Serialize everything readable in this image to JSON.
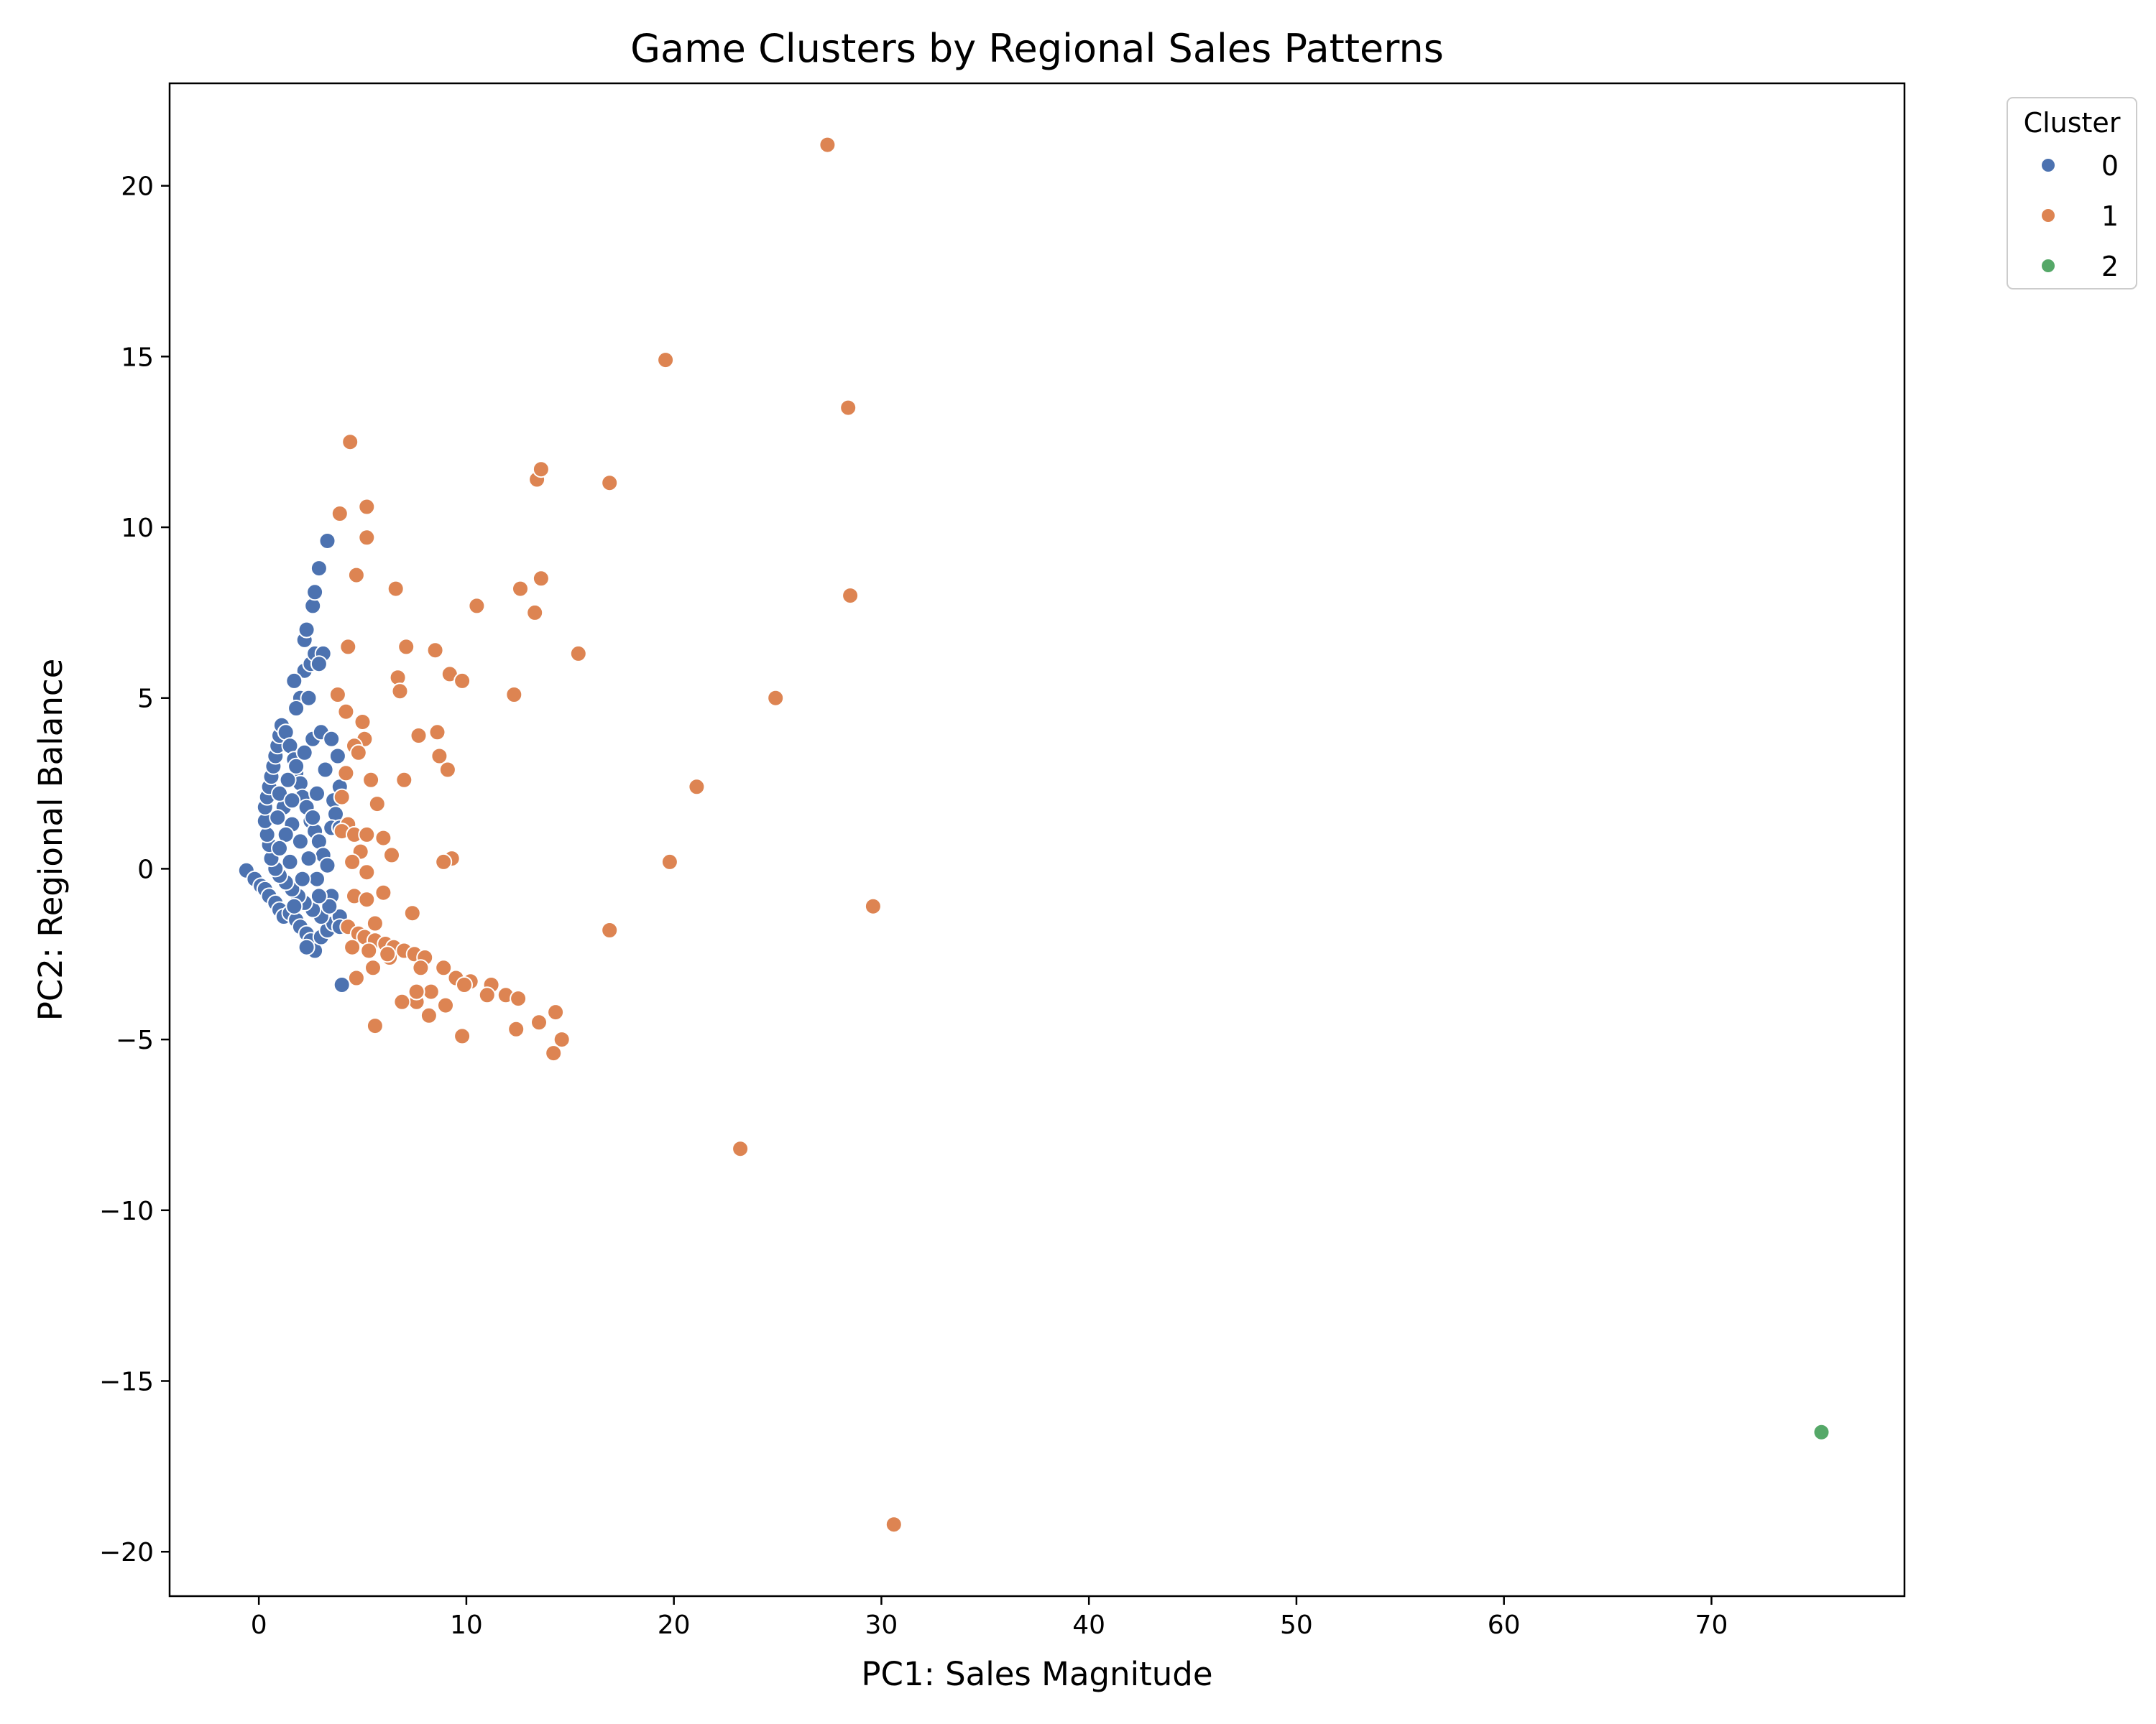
{
  "chart_data": {
    "type": "scatter",
    "title": "Game Clusters by Regional Sales Patterns",
    "xlabel": "PC1: Sales Magnitude",
    "ylabel": "PC2: Regional Balance",
    "xlim": [
      -4.3,
      79.3
    ],
    "ylim": [
      -21.3,
      23.0
    ],
    "xticks": [
      0,
      10,
      20,
      30,
      40,
      50,
      60,
      70
    ],
    "xtick_labels": [
      "0",
      "10",
      "20",
      "30",
      "40",
      "50",
      "60",
      "70"
    ],
    "yticks": [
      -20,
      -15,
      -10,
      -5,
      0,
      5,
      10,
      15,
      20
    ],
    "ytick_labels": [
      "−20",
      "−15",
      "−10",
      "−5",
      "0",
      "5",
      "10",
      "15",
      "20"
    ],
    "grid": false,
    "legend": {
      "title": "Cluster",
      "placement": "upper-right-outside"
    },
    "series": [
      {
        "name": "0",
        "color": "#4c72b0",
        "points": [
          [
            -0.6,
            -0.05
          ],
          [
            -0.2,
            -0.3
          ],
          [
            0.1,
            -0.5
          ],
          [
            0.3,
            -0.6
          ],
          [
            0.5,
            -0.8
          ],
          [
            0.8,
            -1.0
          ],
          [
            1.0,
            -1.2
          ],
          [
            1.2,
            -1.4
          ],
          [
            1.5,
            -1.3
          ],
          [
            1.8,
            -1.5
          ],
          [
            2.0,
            -1.7
          ],
          [
            2.3,
            -1.9
          ],
          [
            2.5,
            -2.1
          ],
          [
            2.7,
            -2.4
          ],
          [
            2.3,
            -2.3
          ],
          [
            3.0,
            -2.0
          ],
          [
            3.3,
            -1.8
          ],
          [
            3.6,
            -1.6
          ],
          [
            3.9,
            -1.4
          ],
          [
            3.0,
            -1.4
          ],
          [
            2.6,
            -1.2
          ],
          [
            2.2,
            -1.0
          ],
          [
            1.9,
            -0.8
          ],
          [
            1.6,
            -0.6
          ],
          [
            1.3,
            -0.4
          ],
          [
            1.0,
            -0.2
          ],
          [
            0.8,
            0.0
          ],
          [
            0.6,
            0.3
          ],
          [
            0.5,
            0.7
          ],
          [
            0.4,
            1.0
          ],
          [
            0.3,
            1.4
          ],
          [
            0.3,
            1.8
          ],
          [
            0.4,
            2.1
          ],
          [
            0.5,
            2.4
          ],
          [
            0.6,
            2.7
          ],
          [
            0.7,
            3.0
          ],
          [
            0.8,
            3.3
          ],
          [
            0.9,
            3.6
          ],
          [
            1.0,
            3.9
          ],
          [
            1.1,
            4.2
          ],
          [
            1.3,
            4.0
          ],
          [
            1.5,
            3.6
          ],
          [
            1.7,
            3.2
          ],
          [
            1.8,
            2.8
          ],
          [
            2.0,
            2.5
          ],
          [
            2.1,
            2.1
          ],
          [
            2.3,
            1.8
          ],
          [
            2.5,
            1.4
          ],
          [
            2.7,
            1.1
          ],
          [
            2.9,
            0.8
          ],
          [
            3.1,
            0.4
          ],
          [
            3.3,
            0.1
          ],
          [
            2.8,
            -0.3
          ],
          [
            2.4,
            0.3
          ],
          [
            2.0,
            0.8
          ],
          [
            1.6,
            1.3
          ],
          [
            1.2,
            1.8
          ],
          [
            1.0,
            2.2
          ],
          [
            1.4,
            2.6
          ],
          [
            1.8,
            3.0
          ],
          [
            2.2,
            3.4
          ],
          [
            2.6,
            3.8
          ],
          [
            3.0,
            4.0
          ],
          [
            3.5,
            3.8
          ],
          [
            2.0,
            5.0
          ],
          [
            2.2,
            5.8
          ],
          [
            2.5,
            6.0
          ],
          [
            2.7,
            6.3
          ],
          [
            2.2,
            6.7
          ],
          [
            2.3,
            7.0
          ],
          [
            2.6,
            7.7
          ],
          [
            2.7,
            8.1
          ],
          [
            2.9,
            8.8
          ],
          [
            3.3,
            9.6
          ],
          [
            1.7,
            5.5
          ],
          [
            1.8,
            4.7
          ],
          [
            2.4,
            5.0
          ],
          [
            3.1,
            6.3
          ],
          [
            2.9,
            6.0
          ],
          [
            3.8,
            3.3
          ],
          [
            3.6,
            2.0
          ],
          [
            3.9,
            2.4
          ],
          [
            3.7,
            1.6
          ],
          [
            3.5,
            1.2
          ],
          [
            3.9,
            1.2
          ],
          [
            3.2,
            2.9
          ],
          [
            2.8,
            2.2
          ],
          [
            2.6,
            1.5
          ],
          [
            1.6,
            2.0
          ],
          [
            1.3,
            1.0
          ],
          [
            1.0,
            0.6
          ],
          [
            0.9,
            1.5
          ],
          [
            1.5,
            0.2
          ],
          [
            2.1,
            -0.3
          ],
          [
            3.5,
            -0.8
          ],
          [
            3.9,
            -1.7
          ],
          [
            4.0,
            -3.4
          ],
          [
            3.4,
            -1.1
          ],
          [
            2.9,
            -0.8
          ],
          [
            1.7,
            -1.1
          ]
        ]
      },
      {
        "name": "1",
        "color": "#dd8452",
        "points": [
          [
            27.4,
            21.2
          ],
          [
            19.6,
            14.9
          ],
          [
            28.4,
            13.5
          ],
          [
            4.4,
            12.5
          ],
          [
            16.9,
            11.3
          ],
          [
            13.4,
            11.4
          ],
          [
            13.6,
            11.7
          ],
          [
            3.9,
            10.4
          ],
          [
            5.2,
            10.6
          ],
          [
            5.2,
            9.7
          ],
          [
            13.6,
            8.5
          ],
          [
            4.7,
            8.6
          ],
          [
            6.6,
            8.2
          ],
          [
            12.6,
            8.2
          ],
          [
            10.5,
            7.7
          ],
          [
            13.3,
            7.5
          ],
          [
            28.5,
            8.0
          ],
          [
            4.3,
            6.5
          ],
          [
            7.1,
            6.5
          ],
          [
            8.5,
            6.4
          ],
          [
            15.4,
            6.3
          ],
          [
            9.2,
            5.7
          ],
          [
            6.7,
            5.6
          ],
          [
            9.8,
            5.5
          ],
          [
            6.8,
            5.2
          ],
          [
            12.3,
            5.1
          ],
          [
            24.9,
            5.0
          ],
          [
            3.8,
            5.1
          ],
          [
            4.2,
            4.6
          ],
          [
            5.0,
            4.3
          ],
          [
            8.6,
            4.0
          ],
          [
            7.7,
            3.9
          ],
          [
            5.1,
            3.8
          ],
          [
            4.6,
            3.6
          ],
          [
            4.8,
            3.4
          ],
          [
            8.7,
            3.3
          ],
          [
            9.1,
            2.9
          ],
          [
            4.2,
            2.8
          ],
          [
            7.0,
            2.6
          ],
          [
            5.4,
            2.6
          ],
          [
            21.1,
            2.4
          ],
          [
            4.0,
            2.1
          ],
          [
            5.7,
            1.9
          ],
          [
            4.3,
            1.3
          ],
          [
            4.0,
            1.1
          ],
          [
            4.6,
            1.0
          ],
          [
            5.2,
            1.0
          ],
          [
            6.0,
            0.9
          ],
          [
            4.9,
            0.5
          ],
          [
            6.4,
            0.4
          ],
          [
            9.3,
            0.3
          ],
          [
            8.9,
            0.2
          ],
          [
            19.8,
            0.2
          ],
          [
            4.5,
            0.2
          ],
          [
            5.2,
            -0.1
          ],
          [
            6.0,
            -0.7
          ],
          [
            4.6,
            -0.8
          ],
          [
            5.2,
            -0.9
          ],
          [
            29.6,
            -1.1
          ],
          [
            7.4,
            -1.3
          ],
          [
            5.6,
            -1.6
          ],
          [
            16.9,
            -1.8
          ],
          [
            4.3,
            -1.7
          ],
          [
            4.8,
            -1.9
          ],
          [
            5.1,
            -2.0
          ],
          [
            5.6,
            -2.1
          ],
          [
            6.1,
            -2.2
          ],
          [
            6.5,
            -2.3
          ],
          [
            7.0,
            -2.4
          ],
          [
            7.5,
            -2.5
          ],
          [
            8.0,
            -2.6
          ],
          [
            5.3,
            -2.4
          ],
          [
            4.5,
            -2.3
          ],
          [
            6.3,
            -2.6
          ],
          [
            7.8,
            -2.9
          ],
          [
            8.9,
            -2.9
          ],
          [
            9.5,
            -3.2
          ],
          [
            10.2,
            -3.3
          ],
          [
            11.2,
            -3.4
          ],
          [
            11.9,
            -3.7
          ],
          [
            12.5,
            -3.8
          ],
          [
            11.0,
            -3.7
          ],
          [
            9.9,
            -3.4
          ],
          [
            8.3,
            -3.6
          ],
          [
            7.6,
            -3.9
          ],
          [
            6.9,
            -3.9
          ],
          [
            5.5,
            -2.9
          ],
          [
            4.7,
            -3.2
          ],
          [
            9.0,
            -4.0
          ],
          [
            8.2,
            -4.3
          ],
          [
            14.3,
            -4.2
          ],
          [
            13.5,
            -4.5
          ],
          [
            12.4,
            -4.7
          ],
          [
            9.8,
            -4.9
          ],
          [
            14.6,
            -5.0
          ],
          [
            14.2,
            -5.4
          ],
          [
            5.6,
            -4.6
          ],
          [
            23.2,
            -8.2
          ],
          [
            30.6,
            -19.2
          ],
          [
            7.6,
            -3.6
          ],
          [
            6.2,
            -2.5
          ]
        ]
      },
      {
        "name": "2",
        "color": "#55a868",
        "points": [
          [
            75.3,
            -16.5
          ]
        ]
      }
    ]
  }
}
